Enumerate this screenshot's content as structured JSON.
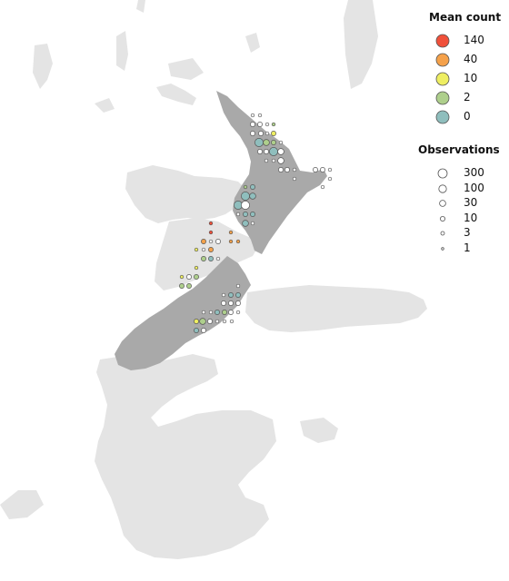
{
  "legend_mean": {
    "title": "Mean count",
    "items": [
      {
        "label": "140",
        "color": "#f0503a"
      },
      {
        "label": "40",
        "color": "#f5a14a"
      },
      {
        "label": "10",
        "color": "#eeee62"
      },
      {
        "label": "2",
        "color": "#aecf8c"
      },
      {
        "label": "0",
        "color": "#8fbebd"
      }
    ]
  },
  "legend_obs": {
    "title": "Observations",
    "items": [
      {
        "label": "300",
        "size": 300
      },
      {
        "label": "100",
        "size": 100
      },
      {
        "label": "30",
        "size": 30
      },
      {
        "label": "10",
        "size": 10
      },
      {
        "label": "3",
        "size": 3
      },
      {
        "label": "1",
        "size": 1
      }
    ]
  },
  "colors": {
    "land_light": "#e4e4e4",
    "land_dark": "#a9a9a9",
    "marker_stroke": "#555555",
    "empty_fill": "#ffffff"
  }
}
